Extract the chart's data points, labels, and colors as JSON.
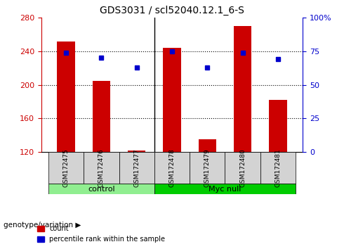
{
  "title": "GDS3031 / scl52040.12.1_6-S",
  "samples": [
    "GSM172475",
    "GSM172476",
    "GSM172477",
    "GSM172478",
    "GSM172479",
    "GSM172480",
    "GSM172481"
  ],
  "counts": [
    251,
    205,
    122,
    244,
    135,
    270,
    182
  ],
  "percentiles": [
    74,
    70,
    63,
    75,
    63,
    74,
    69
  ],
  "ylim_left": [
    120,
    280
  ],
  "ylim_right": [
    0,
    100
  ],
  "yticks_left": [
    120,
    160,
    200,
    240,
    280
  ],
  "yticks_right": [
    0,
    25,
    50,
    75,
    100
  ],
  "ytick_labels_right": [
    "0",
    "25",
    "50",
    "75",
    "100%"
  ],
  "bar_color": "#cc0000",
  "dot_color": "#0000cc",
  "grid_color": "#000000",
  "control_group": [
    "GSM172475",
    "GSM172476",
    "GSM172477"
  ],
  "myc_null_group": [
    "GSM172478",
    "GSM172479",
    "GSM172480",
    "GSM172481"
  ],
  "control_label": "control",
  "myc_null_label": "Myc null",
  "genotype_label": "genotype/variation",
  "legend_count": "count",
  "legend_percentile": "percentile rank within the sample",
  "control_color": "#90ee90",
  "myc_null_color": "#00cc00",
  "annotation_panel_bg": "#d3d3d3",
  "bar_bottom": 120
}
